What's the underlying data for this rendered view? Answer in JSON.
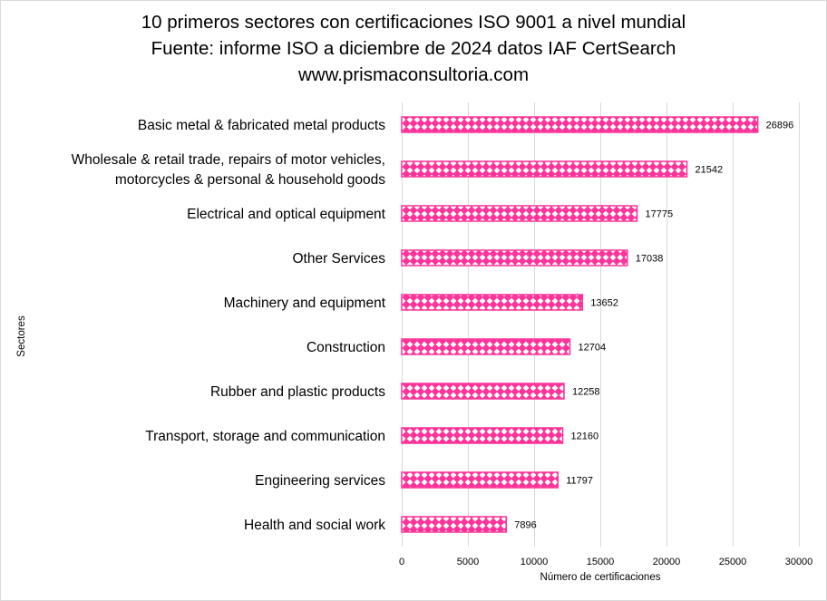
{
  "chart_data": {
    "type": "bar",
    "orientation": "horizontal",
    "title_lines": [
      "10 primeros sectores con certificaciones ISO 9001 a nivel mundial",
      "Fuente: informe ISO  a diciembre de 2024 datos IAF CertSearch",
      "www.prismaconsultoria.com"
    ],
    "categories": [
      [
        "Basic metal & fabricated metal products"
      ],
      [
        "Wholesale & retail trade, repairs of motor vehicles,",
        "motorcycles & personal & household goods"
      ],
      [
        "Electrical and optical equipment"
      ],
      [
        "Other Services"
      ],
      [
        "Machinery and equipment"
      ],
      [
        "Construction"
      ],
      [
        "Rubber and plastic products"
      ],
      [
        "Transport, storage and communication"
      ],
      [
        "Engineering services"
      ],
      [
        "Health and social work"
      ]
    ],
    "values": [
      26896,
      21542,
      17775,
      17038,
      13652,
      12704,
      12258,
      12160,
      11797,
      7896
    ],
    "value_labels": [
      "26896",
      "21542",
      "17775",
      "17038",
      "13652",
      "12704",
      "12258",
      "12160",
      "11797",
      "7896"
    ],
    "xlabel": "Número de certificaciones",
    "ylabel": "Sectores",
    "xlim": [
      0,
      30000
    ],
    "xticks": [
      "0",
      "5000",
      "10000",
      "15000",
      "20000",
      "25000",
      "30000"
    ],
    "xtick_values": [
      0,
      5000,
      10000,
      15000,
      20000,
      25000,
      30000
    ],
    "grid": "vertical",
    "legend": "none",
    "bar_color": "#ff3399",
    "bar_pattern": "white diamond lattice on pink"
  }
}
